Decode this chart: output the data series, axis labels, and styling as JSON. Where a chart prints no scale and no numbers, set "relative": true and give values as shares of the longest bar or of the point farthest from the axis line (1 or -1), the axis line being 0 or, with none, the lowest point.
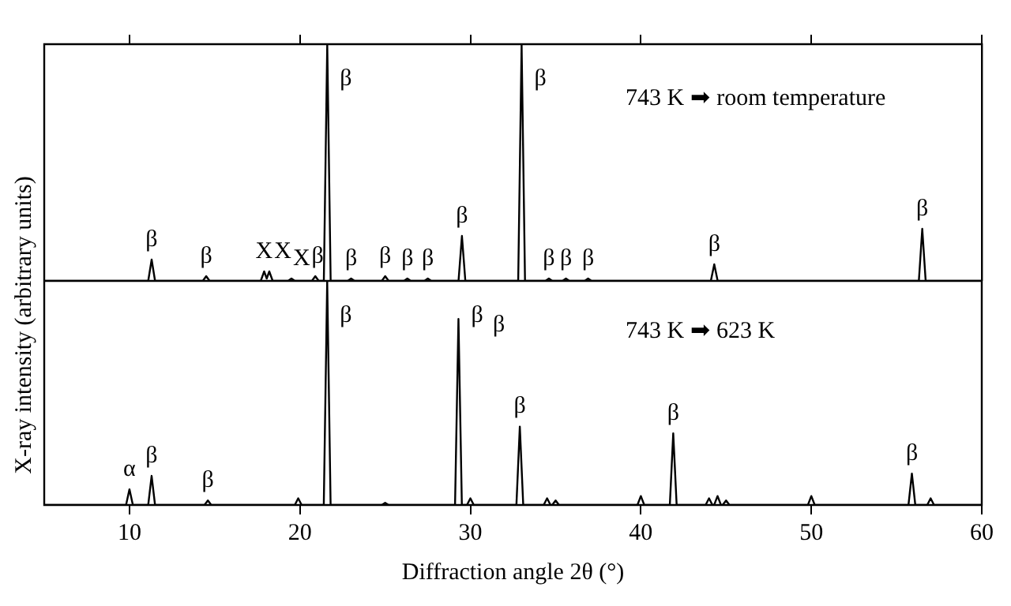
{
  "chart_data": [
    {
      "type": "line",
      "ylabel": "X-ray intensity (arbitrary units)",
      "relative": true,
      "xlim": [
        5,
        60
      ],
      "xticks": [
        10,
        20,
        30,
        40,
        50,
        60
      ],
      "tick_labels": false,
      "series": [
        {
          "color": "#000000",
          "x": [
            5,
            11.1,
            11.3,
            11.5,
            14.3,
            14.5,
            14.7,
            17.7,
            17.9,
            18.05,
            18.2,
            18.4,
            19.3,
            19.5,
            19.7,
            20.7,
            20.9,
            21.1,
            21.4,
            21.6,
            21.8,
            22.8,
            23.0,
            23.2,
            24.8,
            25.0,
            25.2,
            26.1,
            26.3,
            26.5,
            27.3,
            27.5,
            27.7,
            29.3,
            29.5,
            29.7,
            32.8,
            33.0,
            33.2,
            34.4,
            34.6,
            34.8,
            35.4,
            35.6,
            35.8,
            36.7,
            36.9,
            37.1,
            44.1,
            44.3,
            44.5,
            56.3,
            56.5,
            56.7,
            60
          ],
          "values": [
            0,
            0,
            0.09,
            0,
            0,
            0.02,
            0,
            0,
            0.04,
            0.01,
            0.04,
            0,
            0,
            0.01,
            0,
            0,
            0.02,
            0,
            0,
            1,
            0,
            0,
            0.01,
            0,
            0,
            0.02,
            0,
            0,
            0.01,
            0,
            0,
            0.01,
            0,
            0,
            0.19,
            0,
            0,
            1,
            0,
            0,
            0.01,
            0,
            0,
            0.01,
            0,
            0,
            0.01,
            0,
            0,
            0.07,
            0,
            0,
            0.22,
            0,
            0
          ]
        }
      ],
      "annotations": [
        "743 K ➡ room temperature",
        {
          "text": "β",
          "x": 11.3,
          "y": 0.09
        },
        {
          "text": "β",
          "x": 14.5,
          "y": 0.02
        },
        {
          "text": "X",
          "x": 17.9,
          "y": 0.04
        },
        {
          "text": "X",
          "x": 18.2,
          "y": 0.04
        },
        {
          "text": "X",
          "x": 19.5,
          "y": 0.01
        },
        {
          "text": "β",
          "x": 20.9,
          "y": 0.02
        },
        {
          "text": "β",
          "x": 21.6,
          "y": 1
        },
        {
          "text": "β",
          "x": 23.0,
          "y": 0.01
        },
        {
          "text": "β",
          "x": 25.0,
          "y": 0.02
        },
        {
          "text": "β",
          "x": 26.3,
          "y": 0.01
        },
        {
          "text": "β",
          "x": 27.5,
          "y": 0.01
        },
        {
          "text": "β",
          "x": 29.5,
          "y": 0.19
        },
        {
          "text": "β",
          "x": 33.0,
          "y": 1
        },
        {
          "text": "β",
          "x": 34.6,
          "y": 0.01
        },
        {
          "text": "β",
          "x": 35.6,
          "y": 0.01
        },
        {
          "text": "β",
          "x": 36.9,
          "y": 0.01
        },
        {
          "text": "β",
          "x": 44.3,
          "y": 0.07
        },
        {
          "text": "β",
          "x": 56.5,
          "y": 0.22
        }
      ]
    },
    {
      "type": "line",
      "xlabel": "Diffraction angle 2θ (°)",
      "relative": true,
      "xlim": [
        5,
        60
      ],
      "xticks": [
        10,
        20,
        30,
        40,
        50,
        60
      ],
      "tick_labels": "x",
      "series": [
        {
          "color": "#000000",
          "x": [
            5,
            9.8,
            10.0,
            10.2,
            11.1,
            11.3,
            11.5,
            14.4,
            14.6,
            14.8,
            19.7,
            19.9,
            20.1,
            21.4,
            21.6,
            21.8,
            24.8,
            25.0,
            25.2,
            29.1,
            29.3,
            29.5,
            29.8,
            30.0,
            30.2,
            32.7,
            32.9,
            33.1,
            34.3,
            34.5,
            34.7,
            34.8,
            35.0,
            35.2,
            39.8,
            40.0,
            40.2,
            41.7,
            41.9,
            42.1,
            43.8,
            44.0,
            44.2,
            44.3,
            44.5,
            44.7,
            44.8,
            45.0,
            45.2,
            49.8,
            50.0,
            50.2,
            55.7,
            55.9,
            56.1,
            56.8,
            57.0,
            57.2,
            60
          ],
          "values": [
            0,
            0,
            0.07,
            0,
            0,
            0.13,
            0,
            0,
            0.02,
            0,
            0,
            0.03,
            0,
            0,
            1,
            0,
            0,
            0.01,
            0,
            0,
            0.83,
            0,
            0,
            0.03,
            0,
            0,
            0.35,
            0,
            0,
            0.03,
            0,
            0,
            0.02,
            0,
            0,
            0.04,
            0,
            0,
            0.32,
            0,
            0,
            0.03,
            0,
            0,
            0.04,
            0,
            0,
            0.02,
            0,
            0,
            0.04,
            0,
            0,
            0.14,
            0,
            0,
            0.03,
            0,
            0
          ]
        }
      ],
      "annotations": [
        "743 K ➡ 623 K",
        "β",
        {
          "text": "α",
          "x": 10.0,
          "y": 0.07
        },
        {
          "text": "β",
          "x": 11.3,
          "y": 0.13
        },
        {
          "text": "β",
          "x": 14.6,
          "y": 0.02
        },
        {
          "text": "β",
          "x": 21.6,
          "y": 1
        },
        {
          "text": "β",
          "x": 29.3,
          "y": 0.83
        },
        {
          "text": "β",
          "x": 32.9,
          "y": 0.35
        },
        {
          "text": "β",
          "x": 41.9,
          "y": 0.32
        },
        {
          "text": "β",
          "x": 55.9,
          "y": 0.14
        }
      ]
    }
  ]
}
